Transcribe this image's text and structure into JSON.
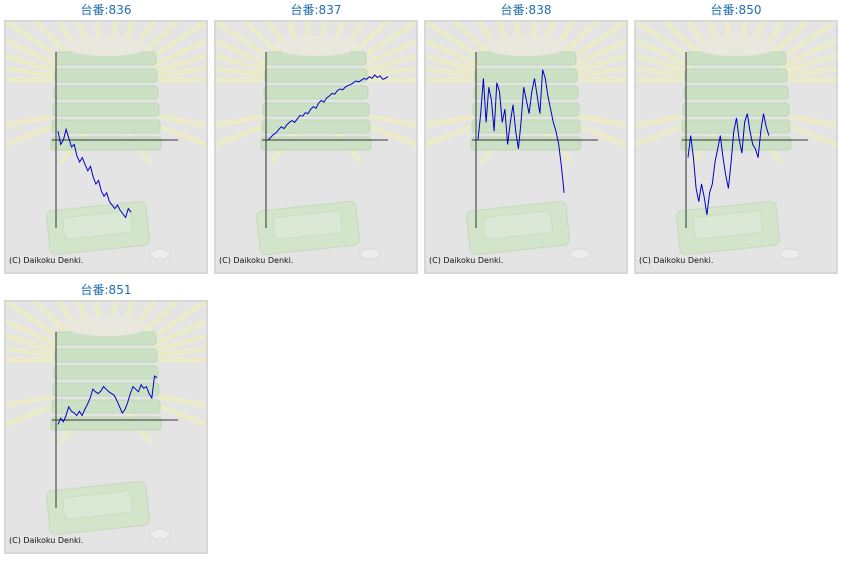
{
  "colors": {
    "title": "#1f6fb2",
    "line": "#0000cc",
    "axis": "#333333",
    "frame": "#d8d8d8",
    "background": "#e4e4e4"
  },
  "copyright": "(C) Daikoku Denki.",
  "chart_data": [
    {
      "type": "line",
      "title": "台番:836",
      "xlim": [
        0,
        100
      ],
      "ylim": [
        -1,
        1
      ],
      "values": [
        0.1,
        -0.05,
        0.0,
        0.12,
        0.02,
        -0.08,
        -0.05,
        -0.18,
        -0.25,
        -0.2,
        -0.28,
        -0.35,
        -0.3,
        -0.42,
        -0.5,
        -0.46,
        -0.58,
        -0.64,
        -0.6,
        -0.7,
        -0.74,
        -0.78,
        -0.74,
        -0.8,
        -0.84,
        -0.88,
        -0.78,
        -0.82
      ]
    },
    {
      "type": "line",
      "title": "台番:837",
      "xlim": [
        0,
        100
      ],
      "ylim": [
        -1,
        1
      ],
      "values": [
        0.0,
        0.03,
        0.06,
        0.08,
        0.12,
        0.15,
        0.13,
        0.17,
        0.2,
        0.22,
        0.2,
        0.24,
        0.28,
        0.27,
        0.31,
        0.3,
        0.35,
        0.38,
        0.36,
        0.42,
        0.45,
        0.43,
        0.48,
        0.5,
        0.53,
        0.52,
        0.56,
        0.58,
        0.57,
        0.6,
        0.62,
        0.63,
        0.65,
        0.67,
        0.66,
        0.68,
        0.7,
        0.69,
        0.72,
        0.7,
        0.74,
        0.71,
        0.73,
        0.69,
        0.7,
        0.72
      ]
    },
    {
      "type": "line",
      "title": "台番:838",
      "xlim": [
        0,
        100
      ],
      "ylim": [
        -1,
        1
      ],
      "values": [
        0.0,
        0.3,
        0.7,
        0.2,
        0.6,
        0.45,
        0.1,
        0.65,
        0.55,
        0.2,
        0.35,
        -0.05,
        0.2,
        0.4,
        0.1,
        -0.1,
        0.2,
        0.6,
        0.45,
        0.3,
        0.55,
        0.7,
        0.5,
        0.3,
        0.8,
        0.7,
        0.5,
        0.35,
        0.2,
        0.1,
        -0.05,
        -0.3,
        -0.6
      ]
    },
    {
      "type": "line",
      "title": "台番:850",
      "xlim": [
        0,
        100
      ],
      "ylim": [
        -1,
        1
      ],
      "values": [
        -0.2,
        0.05,
        -0.2,
        -0.55,
        -0.7,
        -0.5,
        -0.65,
        -0.85,
        -0.6,
        -0.5,
        -0.25,
        -0.1,
        0.05,
        -0.2,
        -0.4,
        -0.55,
        -0.25,
        0.1,
        0.25,
        0.0,
        -0.15,
        0.2,
        0.3,
        0.1,
        -0.05,
        -0.1,
        -0.2,
        0.1,
        0.3,
        0.15,
        0.05
      ]
    },
    {
      "type": "line",
      "title": "台番:851",
      "xlim": [
        0,
        100
      ],
      "ylim": [
        -1,
        1
      ],
      "values": [
        -0.05,
        0.02,
        -0.02,
        0.05,
        0.15,
        0.1,
        0.08,
        0.05,
        0.1,
        0.05,
        0.12,
        0.18,
        0.25,
        0.35,
        0.32,
        0.3,
        0.33,
        0.38,
        0.35,
        0.32,
        0.3,
        0.28,
        0.22,
        0.15,
        0.08,
        0.12,
        0.2,
        0.3,
        0.38,
        0.35,
        0.32,
        0.4,
        0.36,
        0.38,
        0.3,
        0.25,
        0.5,
        0.48
      ]
    }
  ]
}
